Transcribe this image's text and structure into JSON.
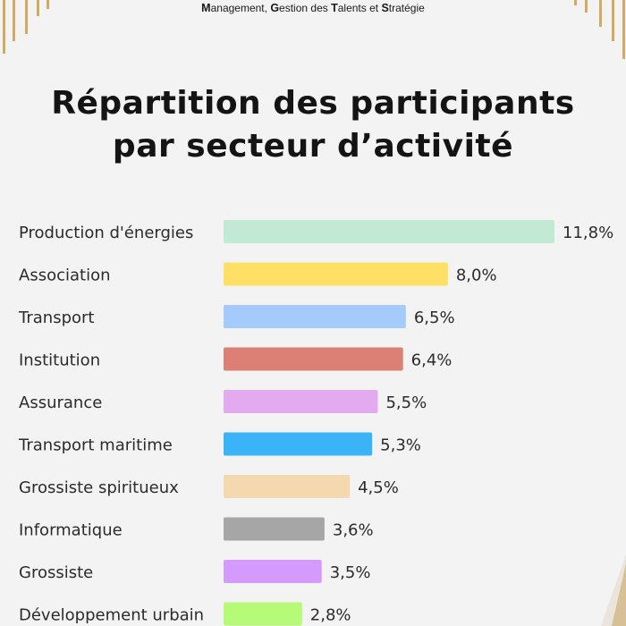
{
  "header": {
    "parts": [
      {
        "text": "M",
        "strong": true
      },
      {
        "text": "anagement, ",
        "strong": false
      },
      {
        "text": "G",
        "strong": true
      },
      {
        "text": "estion des ",
        "strong": false
      },
      {
        "text": "T",
        "strong": true
      },
      {
        "text": "alents et ",
        "strong": false
      },
      {
        "text": "S",
        "strong": true
      },
      {
        "text": "tratégie",
        "strong": false
      }
    ]
  },
  "title_line1": "Répartition des participants",
  "title_line2": "par secteur d’activité",
  "chart_data": {
    "type": "bar",
    "orientation": "horizontal",
    "categories": [
      "Production d'énergies",
      "Association",
      "Transport",
      "Institution",
      "Assurance",
      "Transport maritime",
      "Grossiste spiritueux",
      "Informatique",
      "Grossiste",
      "Développement urbain"
    ],
    "values": [
      11.8,
      8.0,
      6.5,
      6.4,
      5.5,
      5.3,
      4.5,
      3.6,
      3.5,
      2.8
    ],
    "value_labels": [
      "11,8%",
      "8,0%",
      "6,5%",
      "6,4%",
      "5,5%",
      "5,3%",
      "4,5%",
      "3,6%",
      "3,5%",
      "2,8%"
    ],
    "colors": [
      "#c2e9d4",
      "#ffe066",
      "#a4cbfb",
      "#dc7f74",
      "#e3aaf0",
      "#3ab3f7",
      "#f4d9b0",
      "#a6a6a6",
      "#d49afc",
      "#b6fb77"
    ],
    "unit": "%",
    "grid": false,
    "legend": "none"
  }
}
